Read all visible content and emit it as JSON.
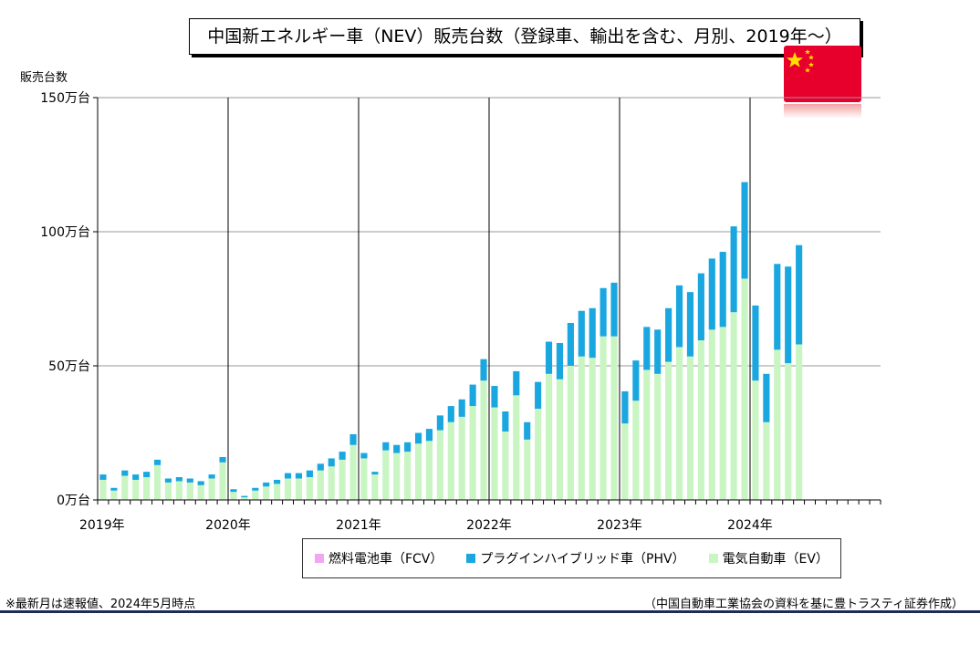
{
  "title": "中国新エネルギー車（NEV）販売台数（登録車、輸出を含む、月別、2019年～）",
  "y_unit_label": "販売台数",
  "note": "※最新月は速報値、2024年5月時点",
  "source": "（中国自動車工業協会の資料を基に豊トラスティ証券作成）",
  "flag_icon": "china-flag-icon",
  "colors": {
    "fcv": "#f2a6f2",
    "phv": "#1aa7e0",
    "ev": "#c9f5c3",
    "grid": "#999999",
    "year_line": "#000000",
    "rule": "#1b2b5a"
  },
  "chart_data": {
    "type": "bar",
    "stacked": true,
    "ylabel": "販売台数",
    "ylim": [
      0,
      150
    ],
    "y_ticks": [
      {
        "value": 0,
        "label": "0万台"
      },
      {
        "value": 50,
        "label": "50万台"
      },
      {
        "value": 100,
        "label": "100万台"
      },
      {
        "value": 150,
        "label": "150万台"
      }
    ],
    "x_year_labels": [
      "2019年",
      "2020年",
      "2021年",
      "2022年",
      "2023年",
      "2024年"
    ],
    "months_per_year": 12,
    "total_months": 72,
    "grid": true,
    "legend_position": "bottom",
    "series": [
      {
        "key": "fcv",
        "name": "燃料電池車（FCV）",
        "values": [
          0,
          0,
          0,
          0,
          0,
          0,
          0,
          0,
          0,
          0,
          0,
          0,
          0,
          0,
          0,
          0,
          0,
          0,
          0,
          0,
          0,
          0,
          0,
          0,
          0,
          0,
          0,
          0,
          0,
          0,
          0,
          0,
          0,
          0,
          0,
          0,
          0,
          0,
          0,
          0,
          0,
          0,
          0,
          0,
          0,
          0,
          0,
          0,
          0,
          0,
          0,
          0,
          0,
          0,
          0,
          0,
          0,
          0,
          0,
          0,
          0,
          0,
          0,
          0,
          0
        ]
      },
      {
        "key": "phv",
        "name": "プラグインハイブリッド車（PHV）",
        "values": [
          2,
          1,
          2,
          2,
          2,
          2,
          1.5,
          1.5,
          1.5,
          1.5,
          1.5,
          2,
          1,
          0.5,
          1,
          1.5,
          1.5,
          2,
          2,
          2.5,
          2.5,
          3,
          3,
          4,
          2,
          1,
          3,
          3,
          3.5,
          4,
          4.5,
          5.5,
          6,
          6.5,
          8,
          8,
          8,
          7.5,
          9,
          6.5,
          10,
          12,
          13.5,
          16,
          17,
          18.5,
          18,
          20,
          12,
          15,
          16,
          16.5,
          20,
          23,
          24,
          25,
          26.5,
          28,
          32,
          36,
          28,
          18,
          32,
          36,
          37
        ]
      },
      {
        "key": "ev",
        "name": "電気自動車（EV）",
        "values": [
          7.5,
          3.5,
          9,
          7.5,
          8.5,
          13,
          6.5,
          7,
          6.5,
          5.5,
          8,
          14,
          3,
          1,
          3.5,
          5,
          6,
          8,
          8,
          8.5,
          11,
          12.5,
          15,
          20.5,
          15.5,
          9.5,
          18.5,
          17.5,
          18,
          21,
          22,
          26,
          29,
          31,
          35,
          44.5,
          34.5,
          25.5,
          39,
          22.5,
          34,
          47,
          45,
          50,
          53.5,
          53,
          61,
          61,
          28.5,
          37,
          48.5,
          47,
          51.5,
          57,
          53.5,
          59.5,
          63.5,
          64.5,
          70,
          82.5,
          44.5,
          29,
          56,
          51,
          58
        ]
      }
    ]
  },
  "legend": [
    {
      "key": "fcv",
      "label": "燃料電池車（FCV）"
    },
    {
      "key": "phv",
      "label": "プラグインハイブリッド車（PHV）"
    },
    {
      "key": "ev",
      "label": "電気自動車（EV）"
    }
  ]
}
